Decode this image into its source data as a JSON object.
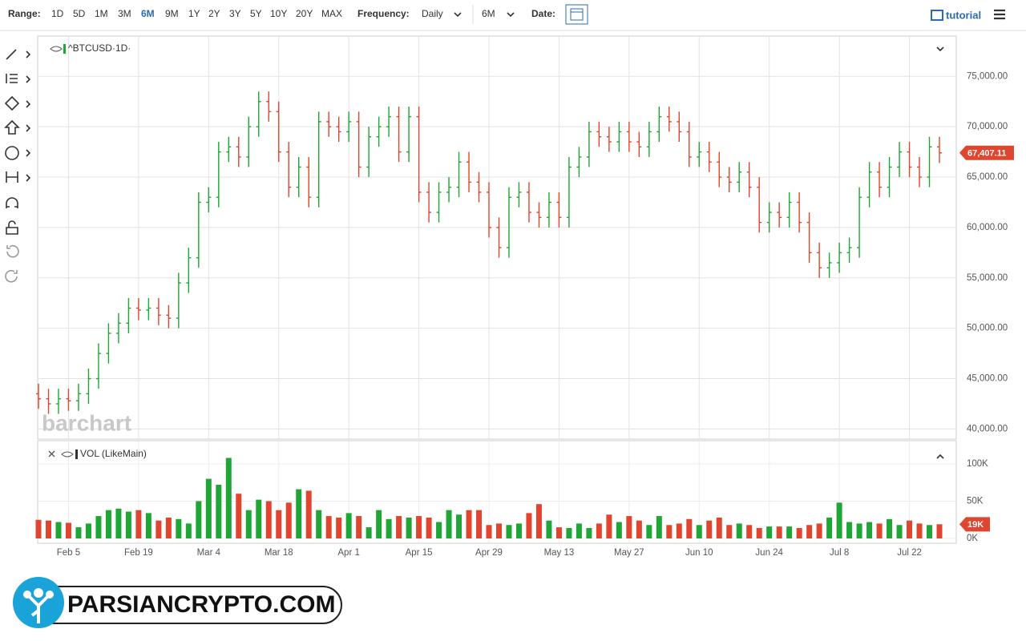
{
  "toolbar": {
    "range_label": "Range:",
    "ranges": [
      "1D",
      "5D",
      "1M",
      "3M",
      "6M",
      "9M",
      "1Y",
      "2Y",
      "3Y",
      "5Y",
      "10Y",
      "20Y",
      "MAX"
    ],
    "frequency_label": "Frequency:",
    "frequency": "Daily",
    "period": "6M",
    "date_label": "Date:",
    "tutorial": "tutorial"
  },
  "chart_data": {
    "type": "ohlc",
    "title": "^BTCUSD·1D·",
    "grid": true,
    "up_color": "#1fa637",
    "down_color": "#e0452f",
    "categories": [
      null,
      null,
      null,
      "Feb 5",
      null,
      null,
      null,
      null,
      null,
      null,
      "Feb 19",
      null,
      null,
      null,
      null,
      null,
      null,
      "Mar 4",
      null,
      null,
      null,
      null,
      null,
      null,
      "Mar 18",
      null,
      null,
      null,
      null,
      null,
      null,
      "Apr 1",
      null,
      null,
      null,
      null,
      null,
      null,
      "Apr 15",
      null,
      null,
      null,
      null,
      null,
      null,
      "Apr 29",
      null,
      null,
      null,
      null,
      null,
      null,
      "May 13",
      null,
      null,
      null,
      null,
      null,
      null,
      "May 27",
      null,
      null,
      null,
      null,
      null,
      null,
      "Jun 10",
      null,
      null,
      null,
      null,
      null,
      null,
      "Jun 24",
      null,
      null,
      null,
      null,
      null,
      null,
      "Jul 8",
      null,
      null,
      null,
      null,
      null,
      null,
      "Jul 22",
      null,
      null,
      null
    ],
    "open": [
      43500,
      43000,
      42500,
      43000,
      42800,
      43500,
      45000,
      47500,
      49500,
      50500,
      52000,
      51800,
      52000,
      51300,
      51000,
      54500,
      57000,
      62500,
      63000,
      67500,
      68000,
      67000,
      70000,
      72500,
      71500,
      67500,
      64000,
      66000,
      63000,
      70500,
      70000,
      69500,
      70500,
      66000,
      69000,
      70000,
      71000,
      67500,
      71000,
      63500,
      61500,
      63500,
      64000,
      66500,
      64500,
      63500,
      60000,
      58000,
      63000,
      63500,
      61500,
      61000,
      62500,
      61000,
      66000,
      67000,
      69500,
      69000,
      68500,
      69500,
      68500,
      68000,
      69500,
      71000,
      70500,
      69500,
      67000,
      67500,
      66500,
      65000,
      64500,
      65500,
      64000,
      60500,
      61500,
      61000,
      62500,
      60500,
      57500,
      56000,
      56500,
      57500,
      58000,
      63000,
      65500,
      64000,
      66000,
      67500,
      66000,
      65000,
      68000
    ],
    "high": [
      44500,
      44000,
      44000,
      44000,
      44500,
      46000,
      48500,
      50500,
      51500,
      53000,
      53000,
      53000,
      53000,
      52300,
      55500,
      58000,
      63500,
      64000,
      68500,
      69000,
      69000,
      71000,
      73500,
      73500,
      72500,
      68500,
      67000,
      67000,
      71500,
      71500,
      71000,
      71500,
      71500,
      70000,
      71000,
      72000,
      72000,
      72000,
      72000,
      64500,
      64500,
      65000,
      67500,
      67500,
      65500,
      64500,
      61000,
      64000,
      64500,
      64500,
      62500,
      63500,
      63500,
      67000,
      68000,
      70500,
      70500,
      70000,
      70500,
      70500,
      69500,
      70500,
      72000,
      72000,
      71500,
      70500,
      68500,
      68500,
      67500,
      66000,
      66500,
      66500,
      65000,
      62500,
      62500,
      63500,
      63500,
      61500,
      58500,
      57500,
      58500,
      59000,
      64000,
      66500,
      66500,
      67000,
      68500,
      68500,
      67000,
      69000,
      69000
    ],
    "low": [
      42000,
      41500,
      41500,
      41800,
      41800,
      42500,
      44000,
      46500,
      48500,
      49500,
      50800,
      50800,
      50300,
      50000,
      50000,
      53500,
      56000,
      61500,
      62000,
      66500,
      66000,
      66000,
      69000,
      70500,
      66500,
      63000,
      63000,
      62000,
      62000,
      69000,
      68500,
      68500,
      65000,
      65000,
      68000,
      69000,
      66500,
      66500,
      62500,
      60500,
      60500,
      62500,
      63000,
      63500,
      62500,
      59000,
      57000,
      57000,
      62000,
      60500,
      60000,
      60000,
      60000,
      60000,
      65000,
      66000,
      68000,
      67500,
      67500,
      67500,
      67000,
      67000,
      68500,
      69500,
      68500,
      66000,
      66000,
      65500,
      64000,
      63500,
      63500,
      63000,
      59500,
      59500,
      60000,
      60000,
      59500,
      56500,
      55000,
      55000,
      55500,
      56500,
      57000,
      62000,
      63000,
      63000,
      65000,
      65000,
      64000,
      64000,
      66400
    ],
    "close": [
      43000,
      42500,
      43000,
      42800,
      43500,
      45000,
      47500,
      49500,
      50500,
      52000,
      51800,
      52000,
      51300,
      51000,
      54500,
      57000,
      62500,
      63000,
      67500,
      68000,
      67000,
      70000,
      72500,
      71500,
      67500,
      64000,
      66000,
      63000,
      70500,
      70000,
      69500,
      70500,
      66000,
      69000,
      70000,
      71000,
      67500,
      71000,
      63500,
      61500,
      63500,
      64000,
      66500,
      64500,
      63500,
      60000,
      58000,
      63000,
      63500,
      61500,
      61000,
      62500,
      61000,
      66000,
      67000,
      69500,
      69000,
      68500,
      69500,
      68500,
      68000,
      69500,
      71000,
      70500,
      69500,
      67000,
      67500,
      66500,
      65000,
      64500,
      65500,
      64000,
      60500,
      61500,
      61000,
      62500,
      60500,
      57500,
      56000,
      56500,
      57500,
      58000,
      63000,
      65500,
      64000,
      66000,
      67500,
      66000,
      65000,
      68000,
      67407.11
    ],
    "last_close_label": "67,407.11",
    "ylim": [
      39000,
      79000
    ],
    "yticks": [
      {
        "value": 40000,
        "label": "40,000.00"
      },
      {
        "value": 45000,
        "label": "45,000.00"
      },
      {
        "value": 50000,
        "label": "50,000.00"
      },
      {
        "value": 55000,
        "label": "55,000.00"
      },
      {
        "value": 60000,
        "label": "60,000.00"
      },
      {
        "value": 65000,
        "label": "65,000.00"
      },
      {
        "value": 70000,
        "label": "70,000.00"
      },
      {
        "value": 75000,
        "label": "75,000.00"
      }
    ],
    "volume": {
      "title": "VOL (LikeMain)",
      "values": [
        25000,
        24000,
        22000,
        21000,
        15000,
        20000,
        30000,
        38000,
        40000,
        36000,
        38000,
        34000,
        24000,
        28000,
        26000,
        20000,
        50000,
        80000,
        72000,
        108000,
        60000,
        38000,
        52000,
        50000,
        38000,
        48000,
        66000,
        64000,
        38000,
        30000,
        28000,
        34000,
        30000,
        15000,
        38000,
        26000,
        30000,
        28000,
        30000,
        28000,
        22000,
        38000,
        32000,
        38000,
        38000,
        18000,
        20000,
        18000,
        20000,
        34000,
        46000,
        24000,
        15000,
        14000,
        20000,
        14000,
        20000,
        32000,
        22000,
        30000,
        24000,
        18000,
        30000,
        18000,
        20000,
        26000,
        18000,
        24000,
        28000,
        18000,
        20000,
        18000,
        14000,
        16000,
        16000,
        16000,
        14000,
        18000,
        20000,
        28000,
        48000,
        22000,
        20000,
        22000,
        20000,
        26000,
        18000,
        24000,
        20000,
        18000,
        19000
      ],
      "last_label": "19K",
      "ylim": [
        0,
        115000
      ],
      "yticks": [
        {
          "value": 0,
          "label": "0K"
        },
        {
          "value": 50000,
          "label": "50K"
        },
        {
          "value": 100000,
          "label": "100K"
        }
      ]
    }
  },
  "watermark": "barchart",
  "logo": "PARSIANCRYPTO.COM"
}
